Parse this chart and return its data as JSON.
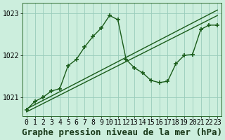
{
  "xlabel": "Graphe pression niveau de la mer (hPa)",
  "bg_color": "#cceedd",
  "grid_color": "#99ccbb",
  "line_color": "#1a5c1a",
  "xlim": [
    -0.5,
    23.5
  ],
  "ylim": [
    1020.55,
    1023.25
  ],
  "yticks": [
    1021,
    1022,
    1023
  ],
  "xticks": [
    0,
    1,
    2,
    3,
    4,
    5,
    6,
    7,
    8,
    9,
    10,
    11,
    12,
    13,
    14,
    15,
    16,
    17,
    18,
    19,
    20,
    21,
    22,
    23
  ],
  "series_linear1": {
    "x": [
      0,
      23
    ],
    "y": [
      1020.72,
      1023.08
    ]
  },
  "series_linear2": {
    "x": [
      0,
      23
    ],
    "y": [
      1020.65,
      1022.95
    ]
  },
  "series_wave": {
    "x": [
      0,
      1,
      2,
      3,
      4,
      5,
      6,
      7,
      8,
      9,
      10,
      11,
      12,
      13,
      14,
      15,
      16,
      17,
      18,
      19,
      20,
      21,
      22,
      23
    ],
    "y": [
      1020.7,
      1020.9,
      1021.0,
      1021.15,
      1021.2,
      1021.75,
      1021.9,
      1022.2,
      1022.45,
      1022.65,
      1022.95,
      1022.85,
      1021.9,
      1021.7,
      1021.58,
      1021.4,
      1021.35,
      1021.38,
      1021.8,
      1022.0,
      1022.02,
      1022.62,
      1022.72,
      1022.72
    ]
  },
  "xlabel_fontsize": 9,
  "tick_fontsize": 7,
  "marker": "+",
  "marker_size": 5,
  "line_width": 1.0
}
